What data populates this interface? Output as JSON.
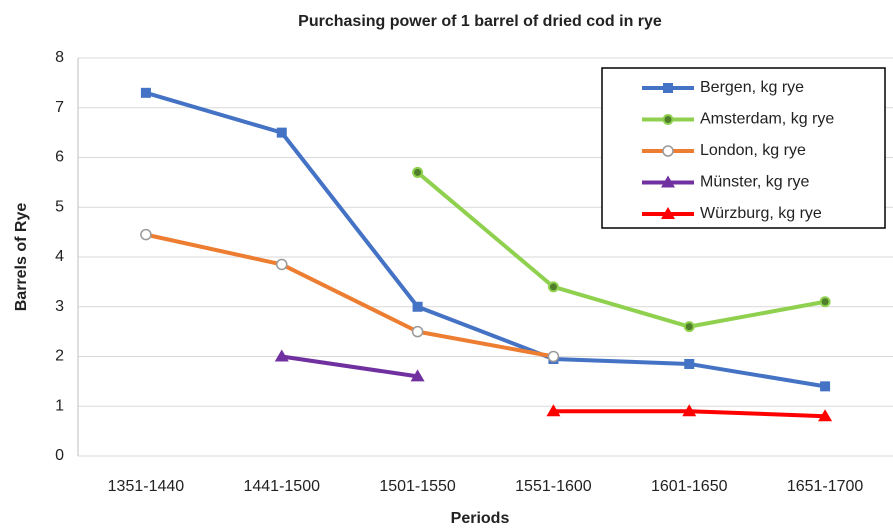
{
  "chart_data": {
    "type": "line",
    "title": "Purchasing power of 1 barrel of dried cod in rye",
    "x_label": "Periods",
    "y_label": "Barrels of Rye",
    "categories": [
      "1351-1440",
      "1441-1500",
      "1501-1550",
      "1551-1600",
      "1601-1650",
      "1651-1700"
    ],
    "series": [
      {
        "name": "Bergen, kg rye",
        "color": "#4472c4",
        "marker": "square",
        "values": [
          7.3,
          6.5,
          3.0,
          1.95,
          1.85,
          1.4
        ]
      },
      {
        "name": "Amsterdam, kg rye",
        "color": "#8fd14f",
        "marker": "dot",
        "values": [
          null,
          null,
          5.7,
          3.4,
          2.6,
          3.1
        ]
      },
      {
        "name": "London, kg rye",
        "color": "#ed7d31",
        "marker": "open-circle",
        "values": [
          4.45,
          3.85,
          2.5,
          2.0,
          null,
          null
        ]
      },
      {
        "name": "Münster, kg rye",
        "color": "#7030a0",
        "marker": "triangle",
        "values": [
          null,
          2.0,
          1.6,
          null,
          null,
          null
        ]
      },
      {
        "name": "Würzburg, kg rye",
        "color": "#ff0000",
        "marker": "triangle",
        "values": [
          null,
          null,
          null,
          0.9,
          0.9,
          0.8
        ]
      }
    ],
    "ylim": [
      0,
      8
    ],
    "yticks": [
      0,
      1,
      2,
      3,
      4,
      5,
      6,
      7,
      8
    ],
    "grid": true,
    "legend": "upper right"
  }
}
